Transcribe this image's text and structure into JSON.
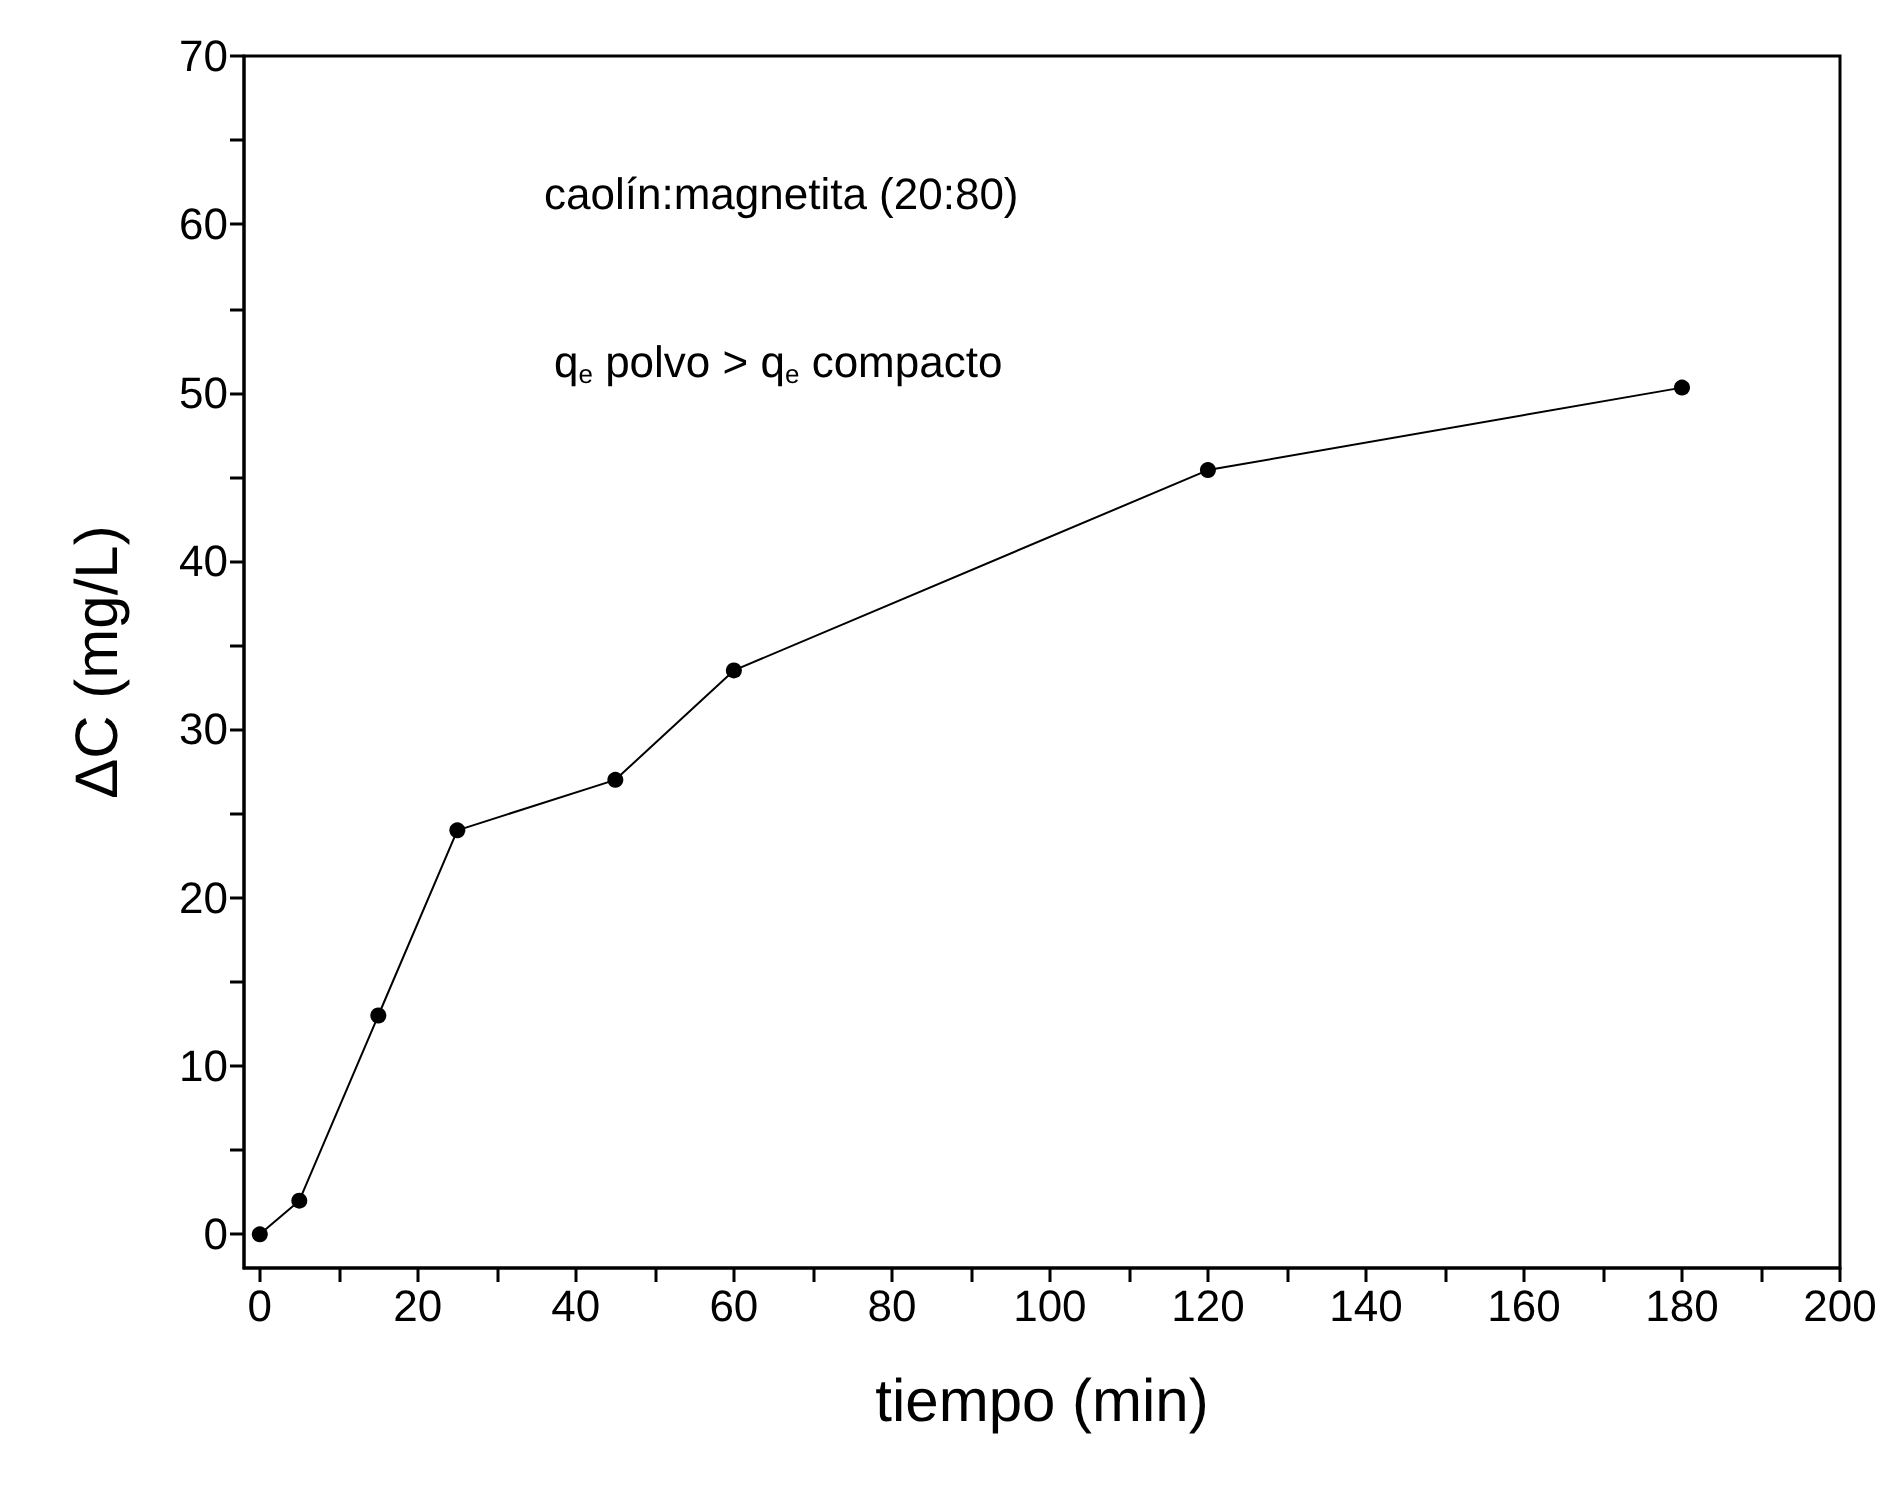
{
  "chart_data": {
    "type": "line",
    "xlabel": "tiempo (min)",
    "ylabel": "ΔC (mg/L)",
    "annotations": [
      "caolín:magnetita (20:80)",
      "q$_{e}$ polvo > q$_{e}$ compacto"
    ],
    "x": [
      0,
      5,
      15,
      25,
      45,
      60,
      120,
      180
    ],
    "series": [
      {
        "color": "#000000",
        "values": [
          0,
          2,
          13,
          24,
          27,
          33.5,
          45.4,
          50.3
        ]
      }
    ],
    "marker": "circle",
    "line_style": "solid",
    "xlim": [
      -2,
      200
    ],
    "ylim": [
      -2,
      70
    ],
    "xticks": [
      0,
      {
        "value": 10,
        "label": null
      },
      20,
      {
        "value": 30,
        "label": null
      },
      40,
      {
        "value": 50,
        "label": null
      },
      60,
      {
        "value": 70,
        "label": null
      },
      80,
      {
        "value": 90,
        "label": null
      },
      100,
      {
        "value": 110,
        "label": null
      },
      120,
      {
        "value": 130,
        "label": null
      },
      140,
      {
        "value": 150,
        "label": null
      },
      160,
      {
        "value": 170,
        "label": null
      },
      180,
      {
        "value": 190,
        "label": null
      },
      200
    ],
    "yticks": [
      0,
      {
        "value": 5,
        "label": null
      },
      10,
      {
        "value": 15,
        "label": null
      },
      20,
      {
        "value": 25,
        "label": null
      },
      30,
      {
        "value": 35,
        "label": null
      },
      40,
      {
        "value": 45,
        "label": null
      },
      50,
      {
        "value": 55,
        "label": null
      },
      60,
      {
        "value": 65,
        "label": null
      },
      70
    ]
  }
}
